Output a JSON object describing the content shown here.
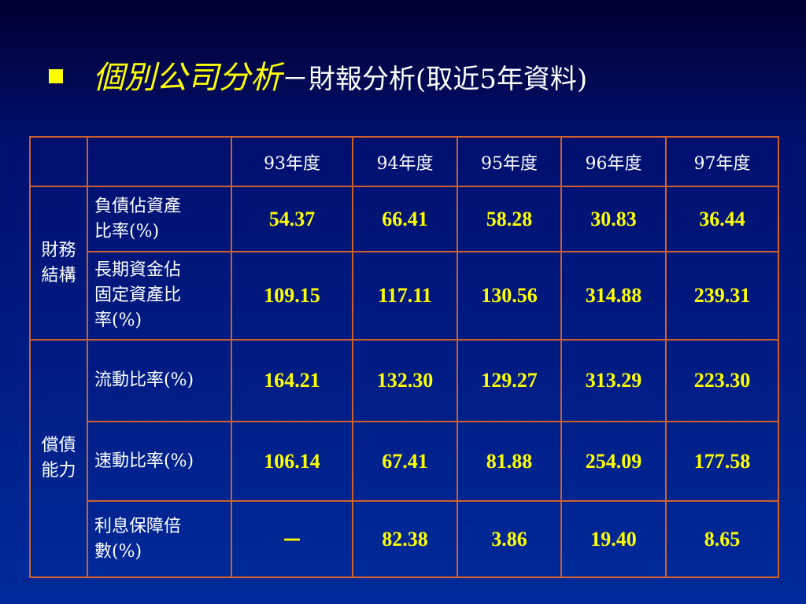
{
  "title": {
    "main": "個別公司分析",
    "sub": "－財報分析(取近5年資料)"
  },
  "table": {
    "columns": [
      "93年度",
      "94年度",
      "95年度",
      "96年度",
      "97年度"
    ],
    "groups": [
      {
        "label": "財務結構",
        "rows": [
          {
            "label": "負債佔資產\n比率(%)",
            "values": [
              "54.37",
              "66.41",
              "58.28",
              "30.83",
              "36.44"
            ]
          },
          {
            "label": "長期資金佔\n固定資產比\n率(%)",
            "values": [
              "109.15",
              "117.11",
              "130.56",
              "314.88",
              "239.31"
            ]
          }
        ]
      },
      {
        "label": "償債能力",
        "rows": [
          {
            "label": "流動比率(%)",
            "values": [
              "164.21",
              "132.30",
              "129.27",
              "313.29",
              "223.30"
            ]
          },
          {
            "label": "速動比率(%)",
            "values": [
              "106.14",
              "67.41",
              "81.88",
              "254.09",
              "177.58"
            ]
          },
          {
            "label": "利息保障倍\n數(%)",
            "values": [
              "－",
              "82.38",
              "3.86",
              "19.40",
              "8.65"
            ]
          }
        ]
      }
    ]
  }
}
